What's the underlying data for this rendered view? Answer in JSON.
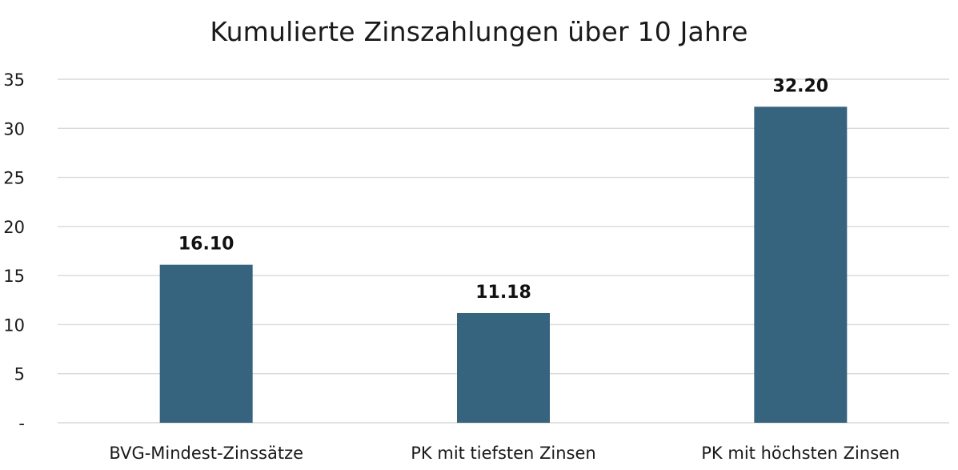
{
  "chart_data": {
    "type": "bar",
    "title": "Kumulierte Zinszahlungen über 10 Jahre",
    "categories": [
      "BVG-Mindest-Zinssätze",
      "PK mit tiefsten Zinsen",
      "PK mit höchsten Zinsen"
    ],
    "values": [
      16.1,
      11.18,
      32.2
    ],
    "value_labels": [
      "16.10",
      "11.18",
      "32.20"
    ],
    "ylim": [
      0,
      35
    ],
    "yticks": [
      0,
      5,
      10,
      15,
      20,
      25,
      30,
      35
    ],
    "ytick_labels": [
      "-",
      "5",
      "10",
      "15",
      "20",
      "25",
      "30",
      "35"
    ],
    "xlabel": "",
    "ylabel": "",
    "grid": true,
    "bar_color": "#36637e",
    "grid_color": "#d9d9d9"
  }
}
